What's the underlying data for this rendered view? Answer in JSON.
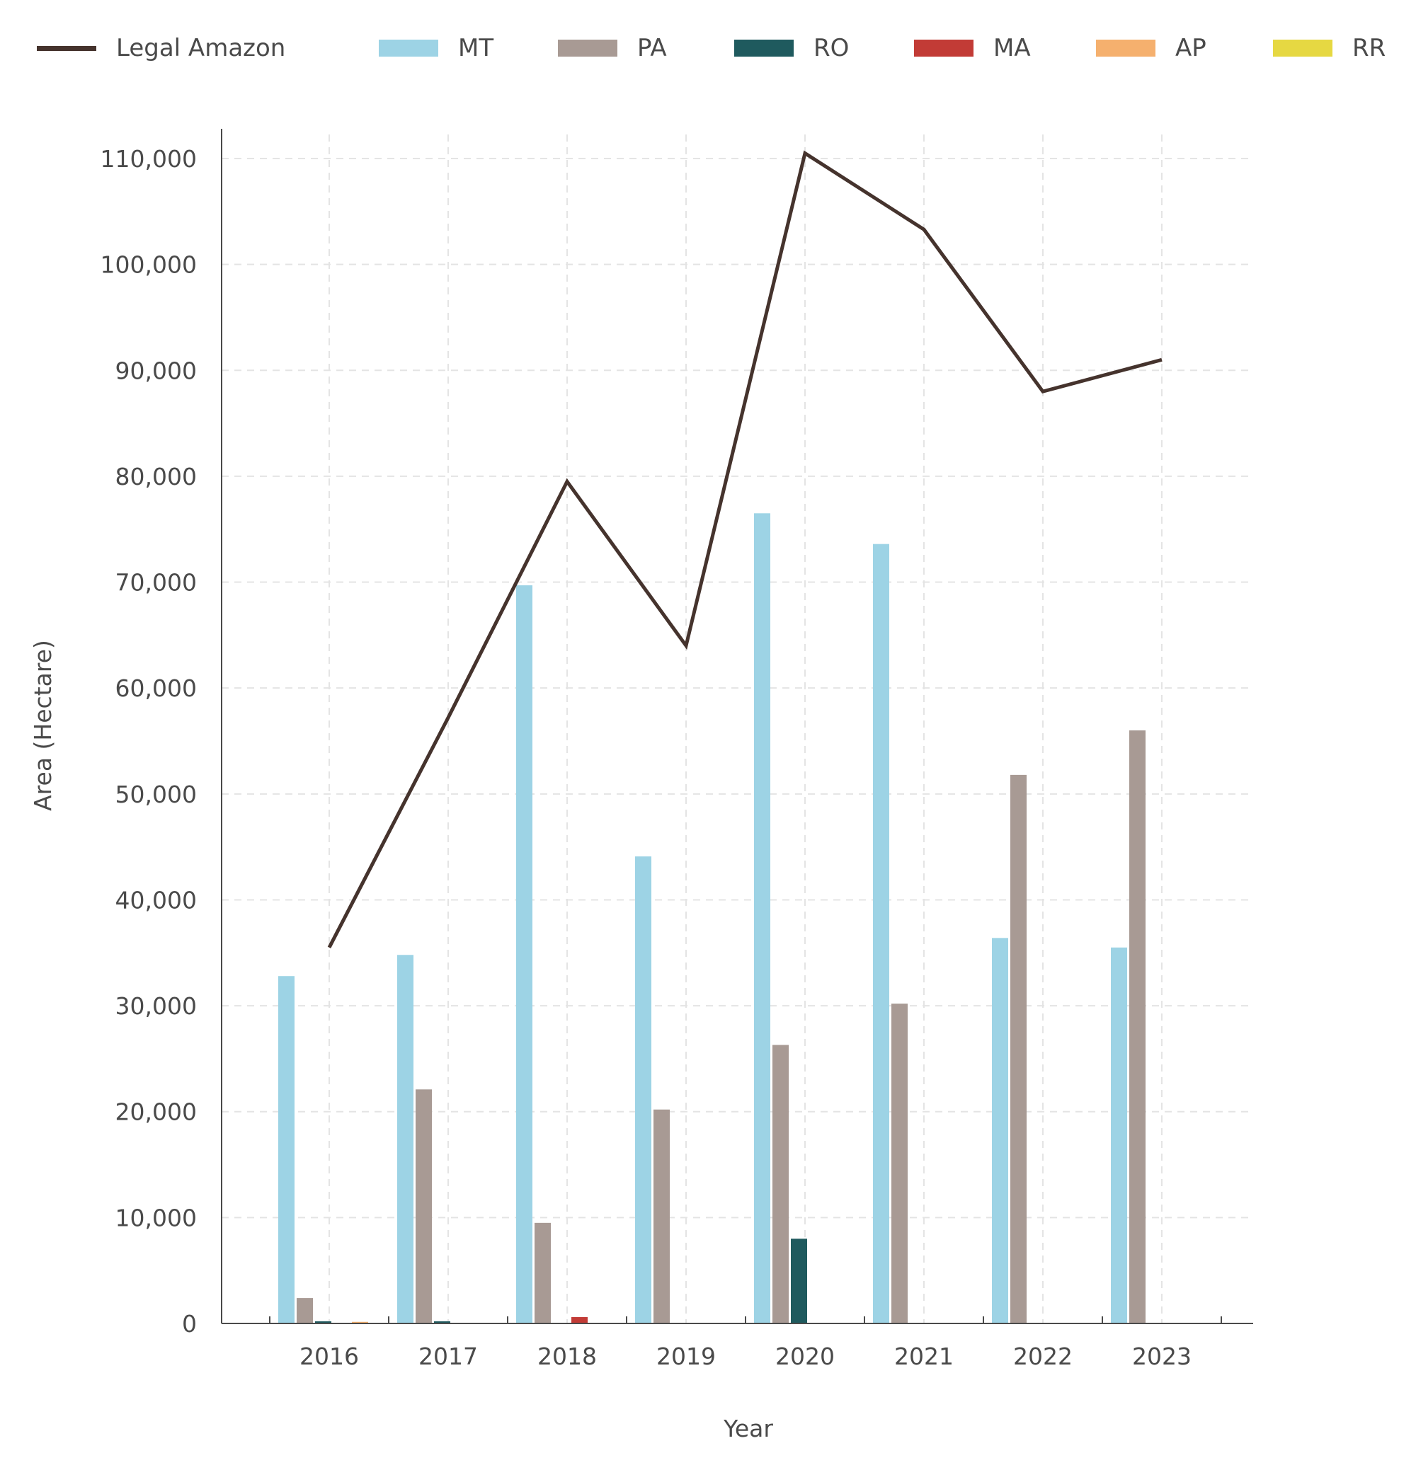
{
  "chart_data": {
    "type": "bar",
    "categories": [
      "2016",
      "2017",
      "2018",
      "2019",
      "2020",
      "2021",
      "2022",
      "2023"
    ],
    "series": [
      {
        "name": "MT",
        "kind": "bar",
        "color": "#9dd3e5",
        "values": [
          32800,
          34800,
          69700,
          44100,
          76500,
          73600,
          36400,
          35500
        ]
      },
      {
        "name": "PA",
        "kind": "bar",
        "color": "#a89a94",
        "values": [
          2400,
          22100,
          9500,
          20200,
          26300,
          30200,
          51800,
          56000
        ]
      },
      {
        "name": "RO",
        "kind": "bar",
        "color": "#1f5a5e",
        "values": [
          200,
          200,
          0,
          0,
          8000,
          0,
          0,
          0
        ]
      },
      {
        "name": "MA",
        "kind": "bar",
        "color": "#c23b36",
        "values": [
          0,
          0,
          600,
          0,
          0,
          0,
          0,
          0
        ]
      },
      {
        "name": "AP",
        "kind": "bar",
        "color": "#f5b06e",
        "values": [
          150,
          0,
          0,
          0,
          0,
          0,
          0,
          0
        ]
      },
      {
        "name": "RR",
        "kind": "bar",
        "color": "#e6d842",
        "values": [
          0,
          0,
          0,
          0,
          0,
          0,
          0,
          0
        ]
      },
      {
        "name": "Legal Amazon",
        "kind": "line",
        "color": "#45332d",
        "values": [
          35500,
          57200,
          79500,
          64000,
          110500,
          103300,
          88000,
          91000
        ]
      }
    ],
    "xlabel": "Year",
    "ylabel": "Area (Hectare)",
    "ylim": [
      0,
      110000
    ],
    "yticks": [
      0,
      10000,
      20000,
      30000,
      40000,
      50000,
      60000,
      70000,
      80000,
      90000,
      100000,
      110000
    ],
    "ytick_labels": [
      "0",
      "10,000",
      "20,000",
      "30,000",
      "40,000",
      "50,000",
      "60,000",
      "70,000",
      "80,000",
      "90,000",
      "100,000",
      "110,000"
    ],
    "legend_order": [
      "Legal Amazon",
      "MT",
      "PA",
      "RO",
      "MA",
      "AP",
      "RR"
    ],
    "legend_position": "top",
    "grid": true
  }
}
